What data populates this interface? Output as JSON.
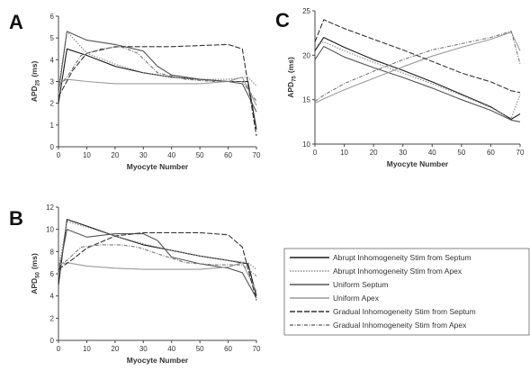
{
  "chart_data": [
    {
      "panel": "A",
      "type": "line",
      "xlabel": "Myocyte Number",
      "ylabel": "APD",
      "ylabel_sub": "25",
      "ylabel_unit": "(ms)",
      "xlim": [
        0,
        70
      ],
      "ylim": [
        0,
        6
      ],
      "xticks": [
        0,
        10,
        20,
        30,
        40,
        50,
        60,
        70
      ],
      "yticks": [
        0,
        1,
        2,
        3,
        4,
        5,
        6
      ],
      "series": [
        {
          "name": "Abrupt Inhomogeneity Stim from Septum",
          "color": "#1a1a1a",
          "dash": "",
          "x": [
            0,
            3,
            10,
            20,
            30,
            40,
            50,
            60,
            67,
            70
          ],
          "y": [
            2.0,
            4.5,
            4.2,
            3.7,
            3.4,
            3.2,
            3.1,
            3.0,
            3.0,
            0.8
          ]
        },
        {
          "name": "Abrupt Inhomogeneity Stim from Apex",
          "color": "#8a8a8a",
          "dash": "1.5,1.5",
          "x": [
            0,
            3,
            10,
            20,
            30,
            40,
            50,
            60,
            67,
            70
          ],
          "y": [
            2.7,
            5.3,
            4.3,
            3.8,
            3.4,
            3.2,
            3.1,
            3.1,
            3.2,
            2.8
          ]
        },
        {
          "name": "Uniform Septum",
          "color": "#555555",
          "dash": "",
          "x": [
            0,
            3,
            10,
            20,
            30,
            35,
            40,
            50,
            60,
            65,
            70
          ],
          "y": [
            2.5,
            5.3,
            4.9,
            4.7,
            4.4,
            3.7,
            3.3,
            3.1,
            3.0,
            2.9,
            1.6
          ]
        },
        {
          "name": "Uniform Apex",
          "color": "#9a9a9a",
          "dash": "",
          "x": [
            0,
            3,
            10,
            20,
            30,
            40,
            50,
            60,
            65,
            70
          ],
          "y": [
            2.9,
            3.1,
            3.0,
            2.9,
            2.9,
            2.9,
            2.9,
            3.0,
            3.2,
            1.9
          ]
        },
        {
          "name": "Gradual Inhomogeneity Stim from Septum",
          "color": "#333333",
          "dash": "6,2",
          "x": [
            0,
            5,
            10,
            20,
            30,
            40,
            50,
            60,
            65,
            70
          ],
          "y": [
            2.3,
            3.5,
            4.3,
            4.6,
            4.6,
            4.6,
            4.65,
            4.7,
            4.5,
            0.5
          ]
        },
        {
          "name": "Gradual Inhomogeneity Stim from Apex",
          "color": "#777777",
          "dash": "4,1.5,1,1.5",
          "x": [
            0,
            3,
            8,
            15,
            22,
            28,
            35,
            45,
            55,
            65,
            70
          ],
          "y": [
            2.8,
            3.2,
            4.2,
            4.5,
            4.6,
            4.3,
            3.4,
            3.1,
            3.0,
            3.0,
            2.1
          ]
        }
      ]
    },
    {
      "panel": "B",
      "type": "line",
      "xlabel": "Myocyte Number",
      "ylabel": "APD",
      "ylabel_sub": "50",
      "ylabel_unit": "(ms)",
      "xlim": [
        0,
        70
      ],
      "ylim": [
        0,
        12
      ],
      "xticks": [
        0,
        10,
        20,
        30,
        40,
        50,
        60,
        70
      ],
      "yticks": [
        0,
        2,
        4,
        6,
        8,
        10,
        12
      ],
      "series": [
        {
          "name": "Abrupt Inhomogeneity Stim from Septum",
          "color": "#1a1a1a",
          "dash": "",
          "x": [
            0,
            3,
            10,
            20,
            30,
            40,
            50,
            60,
            67,
            70
          ],
          "y": [
            5.0,
            10.9,
            10.3,
            9.4,
            8.6,
            8.1,
            7.6,
            7.2,
            6.9,
            4.0
          ]
        },
        {
          "name": "Abrupt Inhomogeneity Stim from Apex",
          "color": "#8a8a8a",
          "dash": "1.5,1.5",
          "x": [
            0,
            3,
            10,
            20,
            30,
            40,
            50,
            60,
            67,
            70
          ],
          "y": [
            6.4,
            10.7,
            10.2,
            9.4,
            8.7,
            8.1,
            7.6,
            7.2,
            7.0,
            6.4
          ]
        },
        {
          "name": "Uniform Septum",
          "color": "#555555",
          "dash": "",
          "x": [
            0,
            3,
            10,
            20,
            30,
            35,
            40,
            50,
            60,
            65,
            70
          ],
          "y": [
            6.0,
            10.0,
            9.3,
            9.6,
            9.6,
            9.0,
            7.5,
            6.9,
            6.5,
            6.1,
            3.8
          ]
        },
        {
          "name": "Uniform Apex",
          "color": "#9a9a9a",
          "dash": "",
          "x": [
            0,
            3,
            10,
            20,
            30,
            40,
            50,
            60,
            65,
            70
          ],
          "y": [
            6.8,
            7.0,
            6.7,
            6.5,
            6.4,
            6.4,
            6.4,
            6.6,
            7.0,
            4.4
          ]
        },
        {
          "name": "Gradual Inhomogeneity Stim from Septum",
          "color": "#333333",
          "dash": "6,2",
          "x": [
            0,
            5,
            10,
            20,
            30,
            40,
            50,
            60,
            65,
            70
          ],
          "y": [
            6.4,
            7.3,
            8.3,
            9.4,
            9.7,
            9.7,
            9.7,
            9.5,
            8.4,
            3.6
          ]
        },
        {
          "name": "Gradual Inhomogeneity Stim from Apex",
          "color": "#777777",
          "dash": "4,1.5,1,1.5",
          "x": [
            0,
            3,
            8,
            15,
            22,
            28,
            35,
            45,
            55,
            65,
            70
          ],
          "y": [
            6.8,
            7.2,
            8.4,
            8.6,
            8.6,
            8.4,
            7.8,
            7.0,
            6.8,
            6.8,
            5.8
          ]
        }
      ]
    },
    {
      "panel": "C",
      "type": "line",
      "xlabel": "Myocyte Number",
      "ylabel": "APD",
      "ylabel_sub": "75",
      "ylabel_unit": "(ms)",
      "xlim": [
        0,
        70
      ],
      "ylim": [
        10,
        25
      ],
      "xticks": [
        0,
        10,
        20,
        30,
        40,
        50,
        60,
        70
      ],
      "yticks": [
        10,
        15,
        20,
        25
      ],
      "series": [
        {
          "name": "Abrupt Inhomogeneity Stim from Septum",
          "color": "#1a1a1a",
          "dash": "",
          "x": [
            0,
            3,
            10,
            20,
            30,
            40,
            50,
            60,
            67,
            70
          ],
          "y": [
            20.5,
            22.0,
            20.9,
            19.5,
            18.3,
            17.0,
            15.6,
            14.2,
            12.8,
            13.4
          ]
        },
        {
          "name": "Abrupt Inhomogeneity Stim from Apex",
          "color": "#8a8a8a",
          "dash": "1.5,1.5",
          "x": [
            0,
            3,
            10,
            20,
            30,
            40,
            50,
            60,
            67,
            70
          ],
          "y": [
            21.0,
            21.5,
            20.5,
            19.2,
            18.0,
            16.8,
            15.5,
            14.1,
            12.9,
            15.6
          ]
        },
        {
          "name": "Uniform Septum",
          "color": "#555555",
          "dash": "",
          "x": [
            0,
            3,
            10,
            20,
            30,
            40,
            50,
            60,
            67,
            70
          ],
          "y": [
            19.5,
            21.0,
            19.8,
            18.6,
            17.5,
            16.3,
            15.0,
            13.8,
            12.7,
            12.5
          ]
        },
        {
          "name": "Uniform Apex",
          "color": "#9a9a9a",
          "dash": "",
          "x": [
            0,
            3,
            10,
            20,
            30,
            40,
            50,
            60,
            67,
            70
          ],
          "y": [
            14.6,
            15.1,
            16.1,
            17.4,
            18.7,
            19.9,
            20.9,
            21.8,
            22.6,
            20.5
          ]
        },
        {
          "name": "Gradual Inhomogeneity Stim from Septum",
          "color": "#333333",
          "dash": "6,2",
          "x": [
            0,
            3,
            10,
            20,
            30,
            40,
            50,
            60,
            67,
            70
          ],
          "y": [
            21.5,
            24.0,
            23.0,
            21.8,
            20.6,
            19.3,
            18.0,
            17.0,
            16.0,
            15.8
          ]
        },
        {
          "name": "Gradual Inhomogeneity Stim from Apex",
          "color": "#777777",
          "dash": "4,1.5,1,1.5",
          "x": [
            0,
            3,
            10,
            20,
            30,
            40,
            50,
            60,
            67,
            70
          ],
          "y": [
            14.8,
            15.5,
            16.8,
            18.2,
            19.5,
            20.6,
            21.3,
            22.0,
            22.7,
            19.0
          ]
        }
      ]
    }
  ],
  "legend": [
    {
      "label": "Abrupt Inhomogeneity Stim from Septum",
      "color": "#1a1a1a",
      "dash": ""
    },
    {
      "label": "Abrupt Inhomogeneity Stim from Apex",
      "color": "#8a8a8a",
      "dash": "1.5,1.5"
    },
    {
      "label": "Uniform Septum",
      "color": "#555555",
      "dash": ""
    },
    {
      "label": "Uniform Apex",
      "color": "#9a9a9a",
      "dash": ""
    },
    {
      "label": "Gradual Inhomogeneity Stim from Septum",
      "color": "#333333",
      "dash": "6,2"
    },
    {
      "label": "Gradual Inhomogeneity Stim from Apex",
      "color": "#777777",
      "dash": "4,1.5,1,1.5"
    }
  ]
}
